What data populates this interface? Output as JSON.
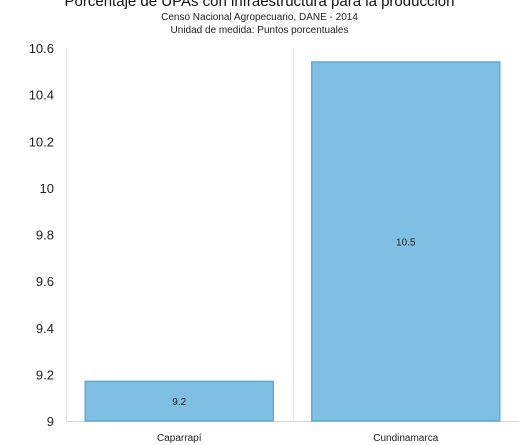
{
  "chart_data": {
    "type": "bar",
    "title": "Porcentaje de UPAs con infraestructura para la producción",
    "subtitles": [
      "Censo Nacional Agropecuario, DANE - 2014",
      "Unidad de medida: Puntos porcentuales"
    ],
    "categories": [
      "Caparrapí",
      "Cundinamarca"
    ],
    "values": [
      9.17,
      10.54
    ],
    "data_labels": [
      "9.2",
      "10.5"
    ],
    "yticks": [
      "9",
      "9.2",
      "9.4",
      "9.6",
      "9.8",
      "10",
      "10.2",
      "10.4",
      "10.6"
    ],
    "ylim": [
      9,
      10.6
    ],
    "xlabel": "",
    "ylabel": "",
    "grid": "vertical",
    "bar_color": "#7fbfe3",
    "bar_border_color": "#5aaedb"
  }
}
